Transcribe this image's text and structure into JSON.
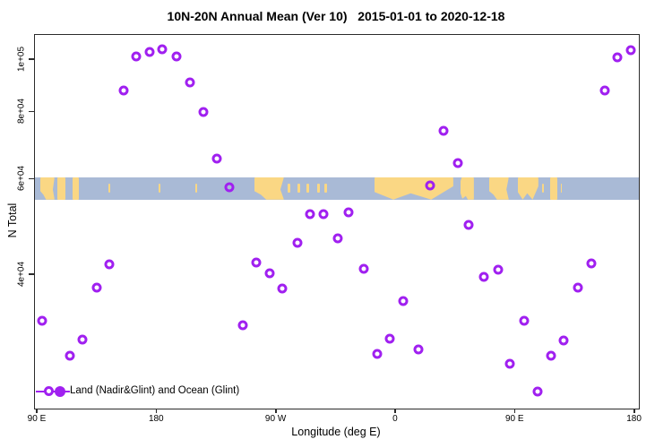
{
  "chart_data": {
    "type": "scatter",
    "title": "10N-20N Annual Mean (Ver 10)   2015-01-01 to 2020-12-18",
    "xlabel": "Longitude (deg E)",
    "ylabel": "N Total",
    "yscale": "log",
    "xlim": [
      88,
      543
    ],
    "ylim": [
      22600,
      111200
    ],
    "grid": "off",
    "legend_position": "bottom-left-inside",
    "x_ticks": [
      {
        "v": 90,
        "t": "90 E"
      },
      {
        "v": 180,
        "t": "180"
      },
      {
        "v": 270,
        "t": "90 W"
      },
      {
        "v": 360,
        "t": "0"
      },
      {
        "v": 450,
        "t": "90 E"
      },
      {
        "v": 540,
        "t": "180"
      }
    ],
    "y_ticks": [
      {
        "v": 100000,
        "t": "1e+05"
      },
      {
        "v": 80000,
        "t": "8e+04"
      },
      {
        "v": 60000,
        "t": "6e+04"
      },
      {
        "v": 40000,
        "t": "4e+04"
      }
    ],
    "legend": "Land (Nadir&Glint) and Ocean (Glint)",
    "series": [
      {
        "name": "Land (Nadir&Glint) and Ocean (Glint)",
        "marker": "open-circle",
        "color": "#A020F0",
        "points": [
          [
            93.6,
            32900
          ],
          [
            114.1,
            28300
          ],
          [
            123.5,
            30300
          ],
          [
            134.3,
            37800
          ],
          [
            144.2,
            41800
          ],
          [
            154.6,
            87900
          ],
          [
            164.3,
            101500
          ],
          [
            174.2,
            103400
          ],
          [
            184.0,
            104500
          ],
          [
            194.4,
            101600
          ],
          [
            204.6,
            90700
          ],
          [
            214.7,
            80000
          ],
          [
            224.8,
            65600
          ],
          [
            234.7,
            58000
          ],
          [
            244.4,
            32200
          ],
          [
            254.7,
            42200
          ],
          [
            264.6,
            40200
          ],
          [
            274.5,
            37700
          ],
          [
            286.0,
            45900
          ],
          [
            295.0,
            51800
          ],
          [
            305.3,
            51800
          ],
          [
            315.9,
            46700
          ],
          [
            324.4,
            52200
          ],
          [
            335.5,
            41000
          ],
          [
            345.6,
            28500
          ],
          [
            355.1,
            30500
          ],
          [
            365.6,
            35800
          ],
          [
            376.9,
            29100
          ],
          [
            385.7,
            58500
          ],
          [
            395.8,
            74000
          ],
          [
            406.6,
            64500
          ],
          [
            414.9,
            49500
          ],
          [
            426.4,
            39700
          ],
          [
            436.7,
            40800
          ],
          [
            445.9,
            27400
          ],
          [
            456.3,
            32900
          ],
          [
            466.4,
            24300
          ],
          [
            476.7,
            28300
          ],
          [
            486.1,
            30250
          ],
          [
            497.1,
            37800
          ],
          [
            507.2,
            41900
          ],
          [
            517.5,
            87700
          ],
          [
            526.5,
            101200
          ],
          [
            536.7,
            104200
          ]
        ]
      }
    ],
    "map_band": {
      "description": "world-map strip drawn across plot",
      "value_top": 60600,
      "value_bottom": 55100,
      "ocean_color": "#A9BAD6",
      "land_color": "#FAD784",
      "land_spans_deg": [
        [
          92.0,
          102.8
        ],
        [
          104.9,
          110.9
        ],
        [
          116.3,
          121.0
        ],
        [
          253.3,
          275.6
        ],
        [
          343.8,
          403.2
        ],
        [
          408.6,
          418.7
        ],
        [
          430.2,
          445.0
        ],
        [
          451.8,
          467.3
        ],
        [
          476.1,
          481.5
        ]
      ],
      "speck_spans_deg": [
        [
          143.5,
          145.0
        ],
        [
          181.0,
          182.5
        ],
        [
          209.0,
          210.5
        ],
        [
          278.3,
          280.3
        ],
        [
          285.7,
          287.7
        ],
        [
          292.5,
          294.5
        ],
        [
          300.6,
          302.6
        ],
        [
          306.0,
          308.0
        ],
        [
          470.0,
          471.2
        ],
        [
          484.0,
          485.2
        ]
      ]
    }
  },
  "colors": {
    "marker": "#A020F0",
    "land": "#FAD784",
    "ocean": "#A9BAD6",
    "axis": "#2b2b2b",
    "background": "#ffffff"
  }
}
